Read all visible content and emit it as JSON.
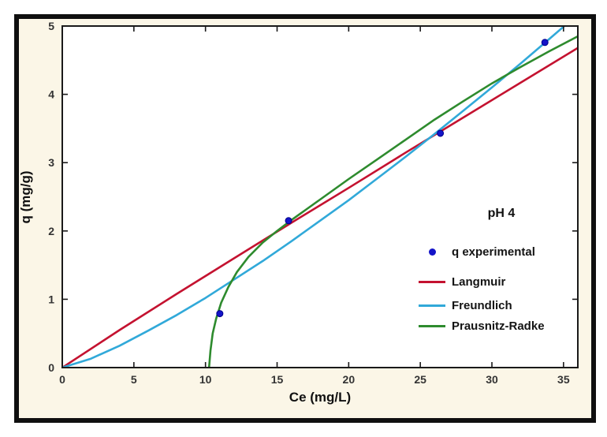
{
  "panel": {
    "background": "#FBF6E7",
    "border_color": "#0f0f0f",
    "plot_background": "#ffffff",
    "frame_color": "#1a1a1a"
  },
  "chart_data": {
    "type": "scatter",
    "annotation_title": "pH 4",
    "xlabel": "Ce (mg/L)",
    "ylabel": "q (mg/g)",
    "xlim": [
      0,
      36
    ],
    "ylim": [
      0,
      5
    ],
    "x_ticks": [
      0,
      5,
      10,
      15,
      20,
      25,
      30,
      35
    ],
    "y_ticks": [
      0,
      1,
      2,
      3,
      4,
      5
    ],
    "grid": false,
    "legend_position": "inside-right",
    "scatter": {
      "name": "q experimental",
      "color": "#1414C8",
      "edge_color": "#00008B",
      "points": [
        [
          11,
          0.79
        ],
        [
          15.8,
          2.15
        ],
        [
          26.4,
          3.43
        ],
        [
          33.7,
          4.76
        ]
      ]
    },
    "series": [
      {
        "name": "Langmuir",
        "type": "line",
        "color": "#C41230",
        "points": [
          [
            0,
            0
          ],
          [
            4,
            0.55
          ],
          [
            8,
            1.08
          ],
          [
            12,
            1.6
          ],
          [
            16,
            2.12
          ],
          [
            20,
            2.63
          ],
          [
            24,
            3.15
          ],
          [
            28,
            3.66
          ],
          [
            32,
            4.17
          ],
          [
            36,
            4.68
          ]
        ]
      },
      {
        "name": "Freundlich",
        "type": "line",
        "color": "#31A9D9",
        "points": [
          [
            0,
            0
          ],
          [
            2,
            0.13
          ],
          [
            4,
            0.32
          ],
          [
            6,
            0.54
          ],
          [
            8,
            0.77
          ],
          [
            10,
            1.02
          ],
          [
            12,
            1.29
          ],
          [
            14,
            1.56
          ],
          [
            16,
            1.85
          ],
          [
            18,
            2.15
          ],
          [
            20,
            2.45
          ],
          [
            22,
            2.77
          ],
          [
            24,
            3.09
          ],
          [
            26,
            3.42
          ],
          [
            28,
            3.76
          ],
          [
            30,
            4.1
          ],
          [
            32,
            4.45
          ],
          [
            34,
            4.81
          ],
          [
            35,
            4.99
          ],
          [
            36,
            5.18
          ]
        ]
      },
      {
        "name": "Prausnitz-Radke",
        "type": "line",
        "color": "#2E8B2E",
        "points": [
          [
            10.25,
            0
          ],
          [
            10.35,
            0.25
          ],
          [
            10.5,
            0.5
          ],
          [
            10.75,
            0.72
          ],
          [
            11.1,
            0.95
          ],
          [
            11.6,
            1.18
          ],
          [
            12.2,
            1.4
          ],
          [
            13,
            1.62
          ],
          [
            14,
            1.83
          ],
          [
            15,
            2.0
          ],
          [
            16,
            2.16
          ],
          [
            17,
            2.31
          ],
          [
            18,
            2.46
          ],
          [
            20,
            2.76
          ],
          [
            22,
            3.05
          ],
          [
            24,
            3.34
          ],
          [
            26,
            3.63
          ],
          [
            28,
            3.9
          ],
          [
            30,
            4.16
          ],
          [
            32,
            4.4
          ],
          [
            34,
            4.63
          ],
          [
            36,
            4.85
          ]
        ]
      }
    ]
  }
}
